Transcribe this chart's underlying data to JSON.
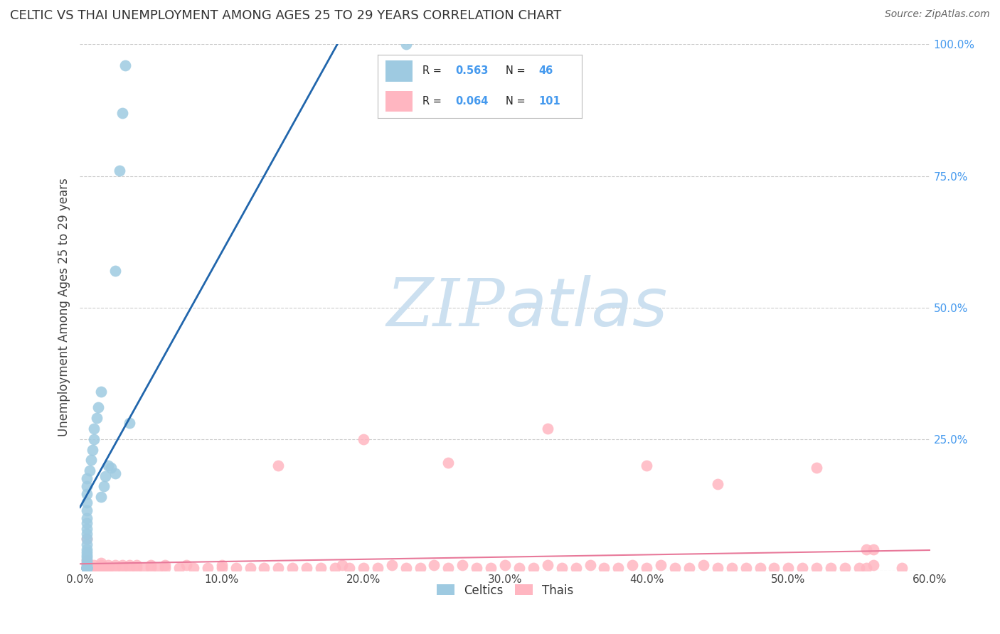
{
  "title": "CELTIC VS THAI UNEMPLOYMENT AMONG AGES 25 TO 29 YEARS CORRELATION CHART",
  "source": "Source: ZipAtlas.com",
  "ylabel": "Unemployment Among Ages 25 to 29 years",
  "xlim": [
    0.0,
    0.6
  ],
  "ylim": [
    0.0,
    1.0
  ],
  "xticks": [
    0.0,
    0.1,
    0.2,
    0.3,
    0.4,
    0.5,
    0.6
  ],
  "xticklabels": [
    "0.0%",
    "10.0%",
    "20.0%",
    "30.0%",
    "40.0%",
    "50.0%",
    "60.0%"
  ],
  "yticks": [
    0.0,
    0.25,
    0.5,
    0.75,
    1.0
  ],
  "yticklabels_right": [
    "",
    "25.0%",
    "50.0%",
    "75.0%",
    "100.0%"
  ],
  "celtic_R": 0.563,
  "celtic_N": 46,
  "thai_R": 0.064,
  "thai_N": 101,
  "celtic_color": "#9ecae1",
  "thai_color": "#ffb6c1",
  "celtic_line_color": "#2166ac",
  "thai_line_color": "#e8799a",
  "watermark_ZIP": "ZIP",
  "watermark_atlas": "atlas",
  "watermark_color": "#cce0f0",
  "background_color": "#ffffff",
  "grid_color": "#cccccc",
  "title_color": "#333333",
  "tick_color": "#4499ee",
  "legend_label_celtic": "Celtics",
  "legend_label_thai": "Thais",
  "celtic_x": [
    0.005,
    0.005,
    0.005,
    0.005,
    0.005,
    0.005,
    0.005,
    0.005,
    0.005,
    0.005,
    0.005,
    0.005,
    0.005,
    0.005,
    0.005,
    0.005,
    0.005,
    0.005,
    0.005,
    0.005,
    0.005,
    0.005,
    0.005,
    0.005,
    0.005,
    0.005,
    0.007,
    0.008,
    0.009,
    0.01,
    0.01,
    0.012,
    0.013,
    0.015,
    0.015,
    0.017,
    0.018,
    0.02,
    0.022,
    0.025,
    0.025,
    0.028,
    0.03,
    0.032,
    0.035,
    0.23
  ],
  "celtic_y": [
    0.005,
    0.005,
    0.005,
    0.005,
    0.005,
    0.005,
    0.005,
    0.005,
    0.01,
    0.015,
    0.02,
    0.025,
    0.03,
    0.035,
    0.04,
    0.05,
    0.06,
    0.07,
    0.08,
    0.09,
    0.1,
    0.115,
    0.13,
    0.145,
    0.16,
    0.175,
    0.19,
    0.21,
    0.23,
    0.25,
    0.27,
    0.29,
    0.31,
    0.34,
    0.14,
    0.16,
    0.18,
    0.2,
    0.195,
    0.185,
    0.57,
    0.76,
    0.87,
    0.96,
    0.28,
    1.0
  ],
  "thai_x": [
    0.005,
    0.005,
    0.005,
    0.005,
    0.005,
    0.005,
    0.005,
    0.005,
    0.005,
    0.005,
    0.01,
    0.01,
    0.01,
    0.01,
    0.01,
    0.015,
    0.015,
    0.015,
    0.015,
    0.02,
    0.02,
    0.02,
    0.025,
    0.025,
    0.03,
    0.03,
    0.035,
    0.035,
    0.04,
    0.04,
    0.045,
    0.05,
    0.05,
    0.055,
    0.06,
    0.06,
    0.07,
    0.075,
    0.08,
    0.09,
    0.1,
    0.1,
    0.11,
    0.12,
    0.13,
    0.14,
    0.15,
    0.16,
    0.17,
    0.18,
    0.185,
    0.19,
    0.2,
    0.21,
    0.22,
    0.23,
    0.24,
    0.25,
    0.26,
    0.27,
    0.28,
    0.29,
    0.3,
    0.31,
    0.32,
    0.33,
    0.34,
    0.35,
    0.36,
    0.37,
    0.38,
    0.39,
    0.4,
    0.41,
    0.42,
    0.43,
    0.44,
    0.45,
    0.46,
    0.47,
    0.48,
    0.49,
    0.5,
    0.51,
    0.52,
    0.53,
    0.54,
    0.55,
    0.555,
    0.56,
    0.005,
    0.14,
    0.2,
    0.26,
    0.33,
    0.4,
    0.45,
    0.52,
    0.555,
    0.56,
    0.58
  ],
  "thai_y": [
    0.005,
    0.005,
    0.005,
    0.005,
    0.005,
    0.005,
    0.005,
    0.01,
    0.015,
    0.02,
    0.005,
    0.005,
    0.005,
    0.005,
    0.01,
    0.005,
    0.005,
    0.01,
    0.015,
    0.005,
    0.005,
    0.01,
    0.005,
    0.01,
    0.005,
    0.01,
    0.005,
    0.01,
    0.005,
    0.01,
    0.005,
    0.005,
    0.01,
    0.005,
    0.005,
    0.01,
    0.005,
    0.01,
    0.005,
    0.005,
    0.005,
    0.01,
    0.005,
    0.005,
    0.005,
    0.005,
    0.005,
    0.005,
    0.005,
    0.005,
    0.01,
    0.005,
    0.005,
    0.005,
    0.01,
    0.005,
    0.005,
    0.01,
    0.005,
    0.01,
    0.005,
    0.005,
    0.01,
    0.005,
    0.005,
    0.01,
    0.005,
    0.005,
    0.01,
    0.005,
    0.005,
    0.01,
    0.005,
    0.01,
    0.005,
    0.005,
    0.01,
    0.005,
    0.005,
    0.005,
    0.005,
    0.005,
    0.005,
    0.005,
    0.005,
    0.005,
    0.005,
    0.005,
    0.005,
    0.01,
    0.06,
    0.2,
    0.25,
    0.205,
    0.27,
    0.2,
    0.165,
    0.195,
    0.04,
    0.04,
    0.005
  ]
}
